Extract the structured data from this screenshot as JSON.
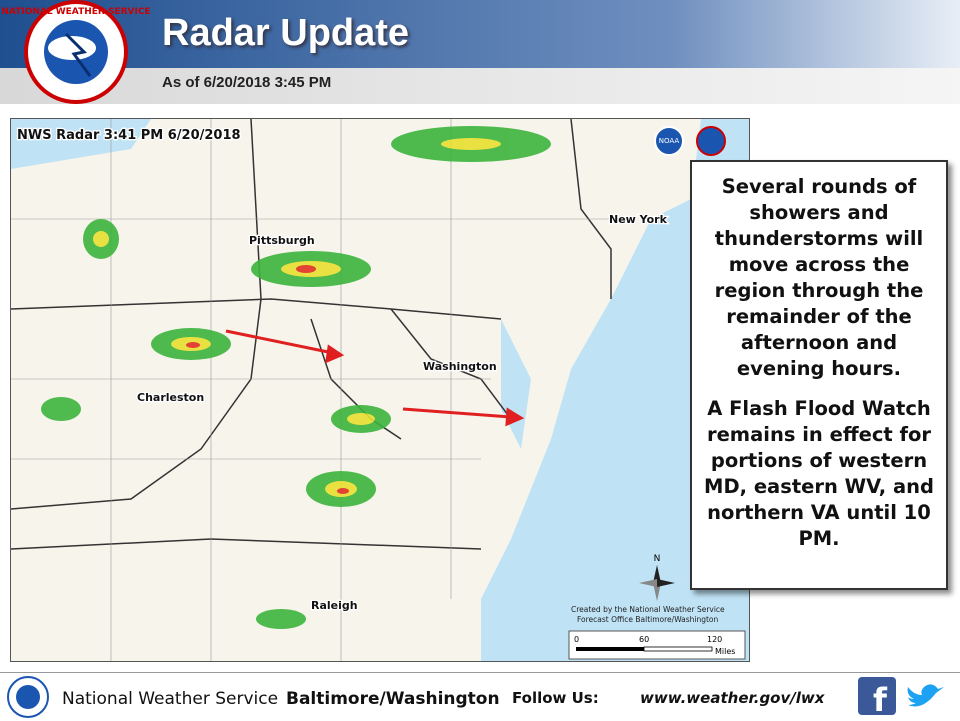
{
  "header": {
    "title": "Radar Update",
    "subtitle": "As of 6/20/2018 3:45 PM",
    "logo_text": "NATIONAL WEATHER SERVICE"
  },
  "map": {
    "title": "NWS Radar 3:41 PM 6/20/2018",
    "cities": [
      "Pittsburgh",
      "New York",
      "Washington",
      "Charleston",
      "Raleigh"
    ],
    "logos": [
      "NOAA"
    ],
    "compass": "N",
    "credit": [
      "Created by the National Weather Service",
      "Forecast Office Baltimore/Washington"
    ],
    "scale": {
      "labels": [
        "0",
        "60",
        "120"
      ],
      "unit": "Miles"
    }
  },
  "callout": {
    "paragraphs": [
      "Several rounds of showers and thunderstorms will move across the region through the remainder of the afternoon and evening hours.",
      "A Flash Flood Watch remains in effect for portions of western MD, eastern WV, and northern VA until 10 PM."
    ]
  },
  "footer": {
    "agency": "National Weather Service",
    "office": "Baltimore/Washington",
    "follow": "Follow Us:",
    "url": "www.weather.gov/lwx"
  }
}
